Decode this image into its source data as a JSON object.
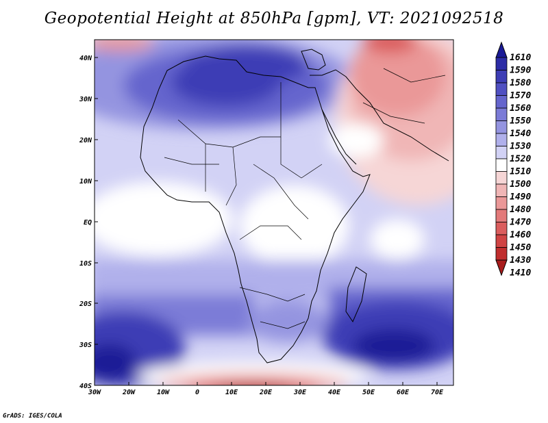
{
  "title": "Geopotential Height at 850hPa [gpm], VT: 2021092518",
  "credit": "GrADS: IGES/COLA",
  "axes": {
    "lat_labels": [
      "40N",
      "30N",
      "20N",
      "10N",
      "EQ",
      "10S",
      "20S",
      "30S",
      "40S"
    ],
    "lon_labels": [
      "30W",
      "20W",
      "10W",
      "0",
      "10E",
      "20E",
      "30E",
      "40E",
      "50E",
      "60E",
      "70E"
    ]
  },
  "colorbar": {
    "levels": [
      "1610",
      "1590",
      "1580",
      "1570",
      "1560",
      "1550",
      "1540",
      "1530",
      "1520",
      "1510",
      "1500",
      "1490",
      "1480",
      "1470",
      "1460",
      "1450",
      "1430",
      "1410"
    ],
    "colors": [
      "#1a1a96",
      "#2c2ca6",
      "#3d3db5",
      "#5050c2",
      "#6565cd",
      "#7b7bd7",
      "#9494e0",
      "#b0b0eb",
      "#d2d2f5",
      "#ffffff",
      "#f6d6d6",
      "#f0b6b6",
      "#ea9898",
      "#e37a7a",
      "#db5d5d",
      "#d04444",
      "#c02e2e",
      "#a81c1c"
    ]
  }
}
